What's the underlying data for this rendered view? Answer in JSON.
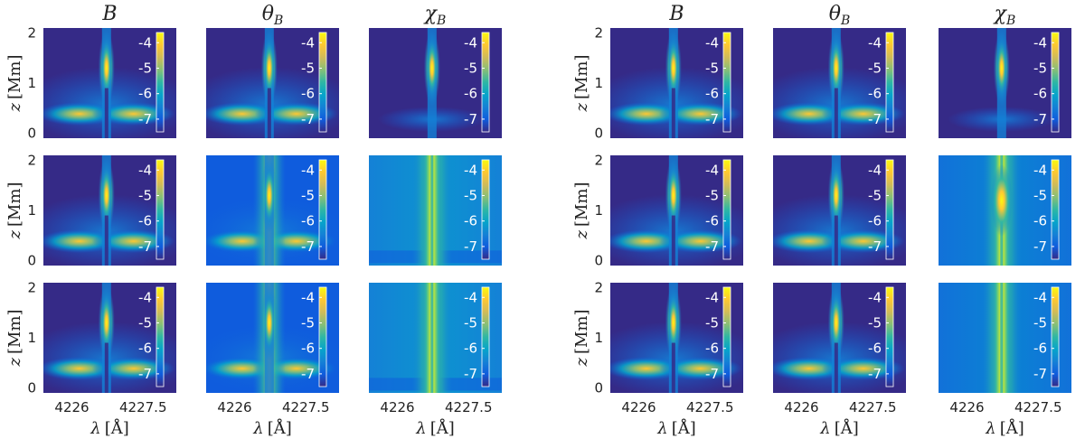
{
  "figure": {
    "column_titles": [
      {
        "main": "B",
        "sub": ""
      },
      {
        "main": "θ",
        "sub": "B"
      },
      {
        "main": "χ",
        "sub": "B"
      }
    ],
    "ylabel_var": "z",
    "ylabel_unit": "[Mm]",
    "xlabel_var": "λ",
    "xlabel_unit": "[Å]"
  },
  "chart_data": {
    "type": "heatmap",
    "panel_groups": 2,
    "rows": 3,
    "columns": 3,
    "x_ticks": [
      "4226",
      "4227.5"
    ],
    "x_tick_values": [
      4226,
      4227.5
    ],
    "xlim": [
      4225.4,
      4228.2
    ],
    "y_ticks": [
      "0",
      "1",
      "2"
    ],
    "y_tick_values": [
      0,
      1,
      2
    ],
    "ylim": [
      -0.1,
      2.1
    ],
    "colorbar_ticks": [
      "-4",
      "-5",
      "-6",
      "-7"
    ],
    "colorbar_values": [
      -4,
      -5,
      -6,
      -7
    ],
    "colormap": "parula",
    "colormap_stops": [
      "#352a87",
      "#0f5cdd",
      "#1481d6",
      "#06a4ca",
      "#2eb7a4",
      "#87bf77",
      "#d1bb59",
      "#fec832",
      "#f9fb0e"
    ],
    "line_center": 4226.73,
    "grid": false
  }
}
